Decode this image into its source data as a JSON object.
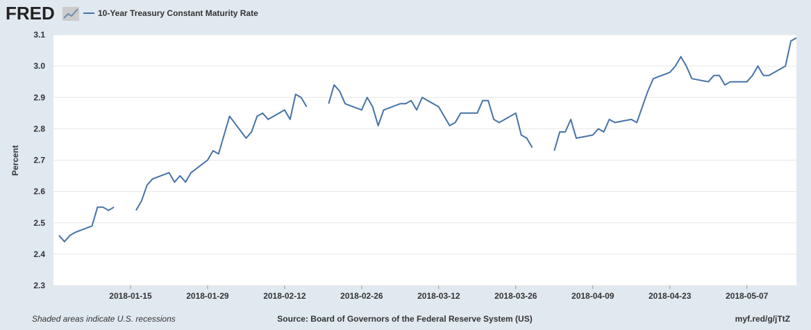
{
  "header": {
    "logo": "FRED"
  },
  "chart_data": {
    "type": "line",
    "y_label": "Percent",
    "x": [
      "2018-01-02",
      "2018-01-03",
      "2018-01-04",
      "2018-01-05",
      "2018-01-08",
      "2018-01-09",
      "2018-01-10",
      "2018-01-11",
      "2018-01-12",
      "2018-01-15",
      "2018-01-16",
      "2018-01-17",
      "2018-01-18",
      "2018-01-19",
      "2018-01-22",
      "2018-01-23",
      "2018-01-24",
      "2018-01-25",
      "2018-01-26",
      "2018-01-29",
      "2018-01-30",
      "2018-01-31",
      "2018-02-01",
      "2018-02-02",
      "2018-02-05",
      "2018-02-06",
      "2018-02-07",
      "2018-02-08",
      "2018-02-09",
      "2018-02-12",
      "2018-02-13",
      "2018-02-14",
      "2018-02-15",
      "2018-02-16",
      "2018-02-19",
      "2018-02-20",
      "2018-02-21",
      "2018-02-22",
      "2018-02-23",
      "2018-02-26",
      "2018-02-27",
      "2018-02-28",
      "2018-03-01",
      "2018-03-02",
      "2018-03-05",
      "2018-03-06",
      "2018-03-07",
      "2018-03-08",
      "2018-03-09",
      "2018-03-12",
      "2018-03-13",
      "2018-03-14",
      "2018-03-15",
      "2018-03-16",
      "2018-03-19",
      "2018-03-20",
      "2018-03-21",
      "2018-03-22",
      "2018-03-23",
      "2018-03-26",
      "2018-03-27",
      "2018-03-28",
      "2018-03-29",
      "2018-03-30",
      "2018-04-02",
      "2018-04-03",
      "2018-04-04",
      "2018-04-05",
      "2018-04-06",
      "2018-04-09",
      "2018-04-10",
      "2018-04-11",
      "2018-04-12",
      "2018-04-13",
      "2018-04-16",
      "2018-04-17",
      "2018-04-18",
      "2018-04-19",
      "2018-04-20",
      "2018-04-23",
      "2018-04-24",
      "2018-04-25",
      "2018-04-26",
      "2018-04-27",
      "2018-04-30",
      "2018-05-01",
      "2018-05-02",
      "2018-05-03",
      "2018-05-04",
      "2018-05-07",
      "2018-05-08",
      "2018-05-09",
      "2018-05-10",
      "2018-05-11",
      "2018-05-14",
      "2018-05-15",
      "2018-05-16"
    ],
    "series": [
      {
        "name": "10-Year Treasury Constant Maturity Rate",
        "color": "#4572a7",
        "values": [
          2.46,
          2.44,
          2.46,
          2.47,
          2.49,
          2.55,
          2.55,
          2.54,
          2.55,
          null,
          2.54,
          2.57,
          2.62,
          2.64,
          2.66,
          2.63,
          2.65,
          2.63,
          2.66,
          2.7,
          2.73,
          2.72,
          2.78,
          2.84,
          2.77,
          2.79,
          2.84,
          2.85,
          2.83,
          2.86,
          2.83,
          2.91,
          2.9,
          2.87,
          null,
          2.88,
          2.94,
          2.92,
          2.88,
          2.86,
          2.9,
          2.87,
          2.81,
          2.86,
          2.88,
          2.88,
          2.89,
          2.86,
          2.9,
          2.87,
          2.84,
          2.81,
          2.82,
          2.85,
          2.85,
          2.89,
          2.89,
          2.83,
          2.82,
          2.85,
          2.78,
          2.77,
          2.74,
          null,
          2.73,
          2.79,
          2.79,
          2.83,
          2.77,
          2.78,
          2.8,
          2.79,
          2.83,
          2.82,
          2.83,
          2.82,
          2.87,
          2.92,
          2.96,
          2.98,
          3.0,
          3.03,
          3.0,
          2.96,
          2.95,
          2.97,
          2.97,
          2.94,
          2.95,
          2.95,
          2.97,
          3.0,
          2.97,
          2.97,
          3.0,
          3.08,
          3.09
        ]
      }
    ],
    "xlim": [
      "2018-01-01",
      "2018-05-16"
    ],
    "xticks": [
      "2018-01-15",
      "2018-01-29",
      "2018-02-12",
      "2018-02-26",
      "2018-03-12",
      "2018-03-26",
      "2018-04-09",
      "2018-04-23",
      "2018-05-07"
    ],
    "ylim": [
      2.3,
      3.1
    ],
    "yticks": [
      2.3,
      2.4,
      2.5,
      2.6,
      2.7,
      2.8,
      2.9,
      {
        "value": 3,
        "label": "3.0"
      },
      3.1
    ],
    "grid": true
  },
  "footer": {
    "note": "Shaded areas indicate U.S. recessions",
    "source": "Source: Board of Governors of the Federal Reserve System (US)",
    "link": "myf.red/g/jTtZ"
  }
}
